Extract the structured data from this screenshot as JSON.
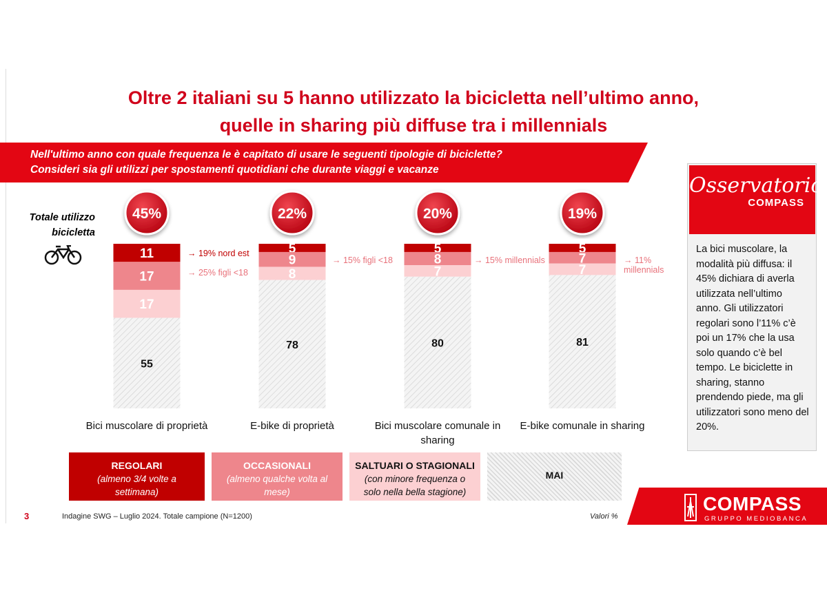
{
  "header": {
    "title_lines": [
      "Oltre 2 italiani su 5 hanno utilizzato la bicicletta nell’ultimo anno,",
      "quelle in sharing più diffuse tra i millennials"
    ],
    "question_lines": [
      "Nell'ultimo anno con quale frequenza le è capitato di usare le seguenti tipologie di biciclette?",
      "Consideri sia gli utilizzi per spostamenti quotidiani che durante viaggi e vacanze"
    ]
  },
  "chart_data": {
    "type": "stacked_bar",
    "categories": [
      "Bici muscolare di proprietà",
      "E-bike di proprietà",
      "Bici muscolare comunale in sharing",
      "E-bike comunale in sharing"
    ],
    "ylim": [
      0,
      100
    ],
    "series": [
      {
        "name": "REGOLARI",
        "description": "(almeno 3/4 volte a settimana)",
        "color": "#c00000",
        "values": [
          11,
          5,
          5,
          5
        ]
      },
      {
        "name": "OCCASIONALI",
        "description": "(almeno qualche volta al mese)",
        "color": "#ee868c",
        "values": [
          17,
          9,
          8,
          7
        ]
      },
      {
        "name": "SALTUARI O STAGIONALI",
        "description": "(con minore frequenza o solo nella bella stagione)",
        "color": "#fcd0d2",
        "values": [
          17,
          8,
          7,
          7
        ]
      },
      {
        "name": "MAI",
        "color": "#f2f2f2",
        "hatched": true,
        "values": [
          55,
          78,
          80,
          81
        ]
      }
    ],
    "totals": {
      "name": "Totale utilizzo bicicletta",
      "values": [
        45,
        22,
        20,
        19
      ],
      "value_labels": [
        "45%",
        "22%",
        "20%",
        "19%"
      ]
    },
    "annotations": [
      "→ 19% nord est",
      "→ 25% figli <18",
      "→ 15% figli <18",
      "→ 15% millennials",
      "→ 11% millennials"
    ]
  },
  "sidebar": {
    "logo": "Osservatorio",
    "logo_brand": "COMPASS",
    "text": "La bici muscolare, la modalità più diffusa: il 45% dichiara di averla utilizzata nell’ultimo anno. Gli utilizzatori regolari sono l’11% c’è poi un 17% che la usa solo quando c’è bel tempo. Le biciclette in sharing, stanno prendendo piede, ma gli utilizzatori sono meno del 20%."
  },
  "footer": {
    "page": "3",
    "source": "Indagine SWG – Luglio 2024. Totale campione (N=1200)",
    "note": "Valori %",
    "brand": "COMPASS",
    "brand_sub": "GRUPPO MEDIOBANCA"
  }
}
